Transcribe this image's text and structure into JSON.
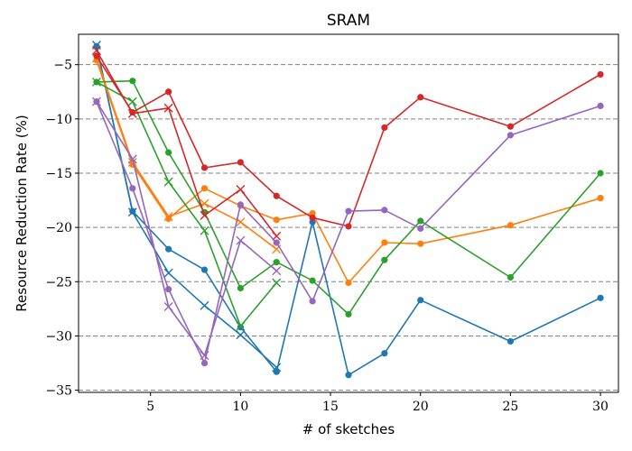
{
  "chart_data": {
    "type": "line",
    "title": "SRAM",
    "xlabel": "# of sketches",
    "ylabel": "Resource Reduction Rate (%)",
    "xlim": [
      1,
      31
    ],
    "ylim": [
      -35.2,
      -2.2
    ],
    "xticks": [
      5,
      10,
      15,
      20,
      25,
      30
    ],
    "yticks": [
      -5,
      -10,
      -15,
      -20,
      -25,
      -30,
      -35
    ],
    "grid": "horizontal-dashed",
    "legend": "none",
    "series": [
      {
        "color": "#1f77b4",
        "marker": "circle",
        "x": [
          2,
          4,
          6,
          8,
          10,
          12,
          14,
          16,
          18,
          20,
          25,
          30
        ],
        "y": [
          -3.3,
          -18.5,
          -22.0,
          -23.9,
          -29.2,
          -33.3,
          -19.5,
          -33.6,
          -31.6,
          -26.7,
          -30.5,
          -26.5
        ]
      },
      {
        "color": "#1f77b4",
        "marker": "x",
        "x": [
          2,
          4,
          6,
          8,
          10,
          12
        ],
        "y": [
          -3.2,
          -18.6,
          -24.2,
          -27.2,
          -29.9,
          -32.9
        ]
      },
      {
        "color": "#ff7f0e",
        "marker": "circle",
        "x": [
          2,
          4,
          6,
          8,
          10,
          12,
          14,
          16,
          18,
          20,
          25,
          30
        ],
        "y": [
          -4.6,
          -14.2,
          -19.2,
          -16.4,
          -18.0,
          -19.3,
          -18.7,
          -25.1,
          -21.4,
          -21.5,
          -19.8,
          -17.3
        ]
      },
      {
        "color": "#ff7f0e",
        "marker": "x",
        "x": [
          2,
          4,
          6,
          8,
          10,
          12
        ],
        "y": [
          -4.4,
          -14.0,
          -19.0,
          -17.8,
          -19.5,
          -22.0
        ]
      },
      {
        "color": "#2ca02c",
        "marker": "circle",
        "x": [
          2,
          4,
          6,
          8,
          10,
          12,
          14,
          16,
          18,
          20,
          25,
          30
        ],
        "y": [
          -6.6,
          -6.5,
          -13.1,
          -18.6,
          -25.6,
          -23.2,
          -24.9,
          -28.0,
          -23.0,
          -19.4,
          -24.6,
          -15.0
        ]
      },
      {
        "color": "#2ca02c",
        "marker": "x",
        "x": [
          2,
          4,
          6,
          8,
          10,
          12
        ],
        "y": [
          -6.6,
          -8.4,
          -15.8,
          -20.3,
          -29.1,
          -25.1
        ]
      },
      {
        "color": "#d62728",
        "marker": "circle",
        "x": [
          2,
          4,
          6,
          8,
          10,
          12,
          14,
          16,
          18,
          20,
          25,
          30
        ],
        "y": [
          -4.2,
          -9.4,
          -7.5,
          -14.5,
          -14.0,
          -17.1,
          -19.1,
          -19.9,
          -10.8,
          -8.0,
          -10.7,
          -5.9
        ]
      },
      {
        "color": "#d62728",
        "marker": "x",
        "x": [
          2,
          4,
          6,
          8,
          10,
          12
        ],
        "y": [
          -3.7,
          -9.5,
          -9.0,
          -18.9,
          -16.5,
          -20.8
        ]
      },
      {
        "color": "#9467bd",
        "marker": "circle",
        "x": [
          2,
          4,
          6,
          8,
          10,
          12,
          14,
          16,
          18,
          20,
          25,
          30
        ],
        "y": [
          -8.4,
          -16.4,
          -25.7,
          -32.5,
          -17.9,
          -21.4,
          -26.8,
          -18.5,
          -18.4,
          -20.1,
          -11.5,
          -8.8
        ]
      },
      {
        "color": "#9467bd",
        "marker": "x",
        "x": [
          2,
          4,
          6,
          8,
          10,
          12
        ],
        "y": [
          -8.4,
          -13.7,
          -27.3,
          -31.8,
          -21.2,
          -24.0
        ]
      }
    ]
  }
}
